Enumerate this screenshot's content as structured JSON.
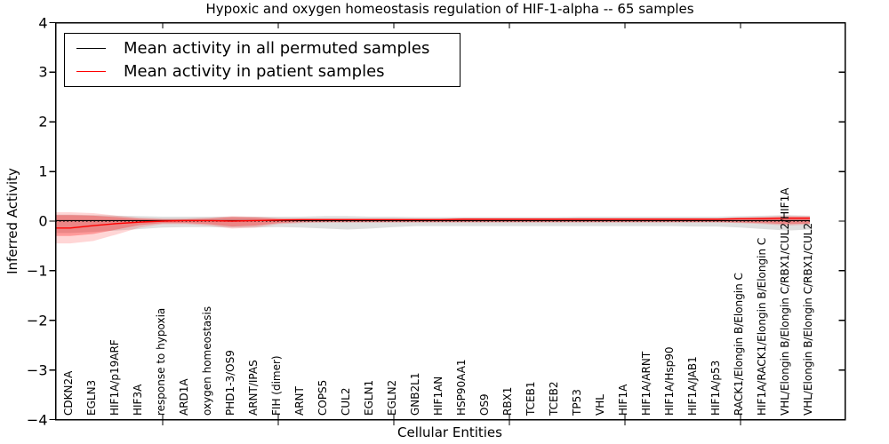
{
  "figure": {
    "title": "Hypoxic and oxygen homeostasis regulation of HIF-1-alpha -- 65 samples",
    "xlabel": "Cellular Entities",
    "ylabel": "Inferred Activity"
  },
  "legend": {
    "items": [
      {
        "label": "Mean activity in all permuted samples",
        "color": "#000000"
      },
      {
        "label": "Mean activity in patient samples",
        "color": "#ff0000"
      }
    ]
  },
  "chart_data": {
    "type": "line",
    "title": "Hypoxic and oxygen homeostasis regulation of HIF-1-alpha -- 65 samples",
    "xlabel": "Cellular Entities",
    "ylabel": "Inferred Activity",
    "ylim": [
      -4,
      4
    ],
    "yticks": [
      4,
      3,
      2,
      1,
      0,
      -1,
      -2,
      -3,
      -4
    ],
    "xticks_at": [
      5,
      10,
      15,
      20,
      25,
      30
    ],
    "grid": false,
    "legend_position": "upper left",
    "categories": [
      "CDKN2A",
      "EGLN3",
      "HIF1A/p19ARF",
      "HIF3A",
      "response to hypoxia",
      "ARD1A",
      "oxygen homeostasis",
      "PHD1-3/OS9",
      "ARNT/IPAS",
      "FIH (dimer)",
      "ARNT",
      "COPS5",
      "CUL2",
      "EGLN1",
      "EGLN2",
      "GNB2L1",
      "HIF1AN",
      "HSP90AA1",
      "OS9",
      "RBX1",
      "TCEB1",
      "TCEB2",
      "TP53",
      "VHL",
      "HIF1A",
      "HIF1A/ARNT",
      "HIF1A/Hsp90",
      "HIF1A/JAB1",
      "HIF1A/p53",
      "RACK1/Elongin B/Elongin C",
      "HIF1A/RACK1/Elongin B/Elongin C",
      "VHL/Elongin B/Elongin C/RBX1/CUL2/HIF1A",
      "VHL/Elongin B/Elongin C/RBX1/CUL2"
    ],
    "zero_line": {
      "value": 0,
      "style": "dotted",
      "color": "#000000"
    },
    "series": [
      {
        "name": "Mean activity in all permuted samples",
        "color": "#000000",
        "band_color": "rgba(0,0,0,0.13)",
        "mean": [
          0.01,
          0.01,
          0.01,
          0.01,
          0.01,
          0.01,
          0.01,
          0.01,
          0.01,
          0.01,
          0.01,
          0.01,
          0.01,
          0.01,
          0.01,
          0.01,
          0.01,
          0.01,
          0.01,
          0.01,
          0.01,
          0.01,
          0.01,
          0.01,
          0.01,
          0.01,
          0.01,
          0.01,
          0.01,
          0.01,
          0.01,
          0.01,
          0.01
        ],
        "band_upper": [
          0.13,
          0.12,
          0.11,
          0.1,
          0.09,
          0.09,
          0.09,
          0.09,
          0.09,
          0.09,
          0.09,
          0.1,
          0.1,
          0.09,
          0.09,
          0.08,
          0.08,
          0.08,
          0.08,
          0.08,
          0.08,
          0.08,
          0.09,
          0.09,
          0.09,
          0.09,
          0.09,
          0.09,
          0.09,
          0.1,
          0.11,
          0.12,
          0.11
        ],
        "band_lower": [
          -0.24,
          -0.22,
          -0.19,
          -0.16,
          -0.13,
          -0.12,
          -0.12,
          -0.13,
          -0.13,
          -0.12,
          -0.13,
          -0.15,
          -0.17,
          -0.15,
          -0.12,
          -0.1,
          -0.1,
          -0.1,
          -0.1,
          -0.1,
          -0.1,
          -0.1,
          -0.1,
          -0.1,
          -0.1,
          -0.1,
          -0.1,
          -0.11,
          -0.11,
          -0.13,
          -0.16,
          -0.19,
          -0.17
        ]
      },
      {
        "name": "Mean activity in patient samples",
        "color": "#ff0000",
        "band_color": "rgba(255,0,0,0.28)",
        "outer_band_color": "rgba(255,0,0,0.16)",
        "mean": [
          -0.14,
          -0.09,
          -0.05,
          -0.02,
          0.0,
          0.01,
          0.01,
          0.0,
          0.01,
          0.02,
          0.03,
          0.03,
          0.03,
          0.03,
          0.03,
          0.03,
          0.03,
          0.04,
          0.04,
          0.04,
          0.04,
          0.04,
          0.04,
          0.04,
          0.04,
          0.04,
          0.04,
          0.04,
          0.04,
          0.05,
          0.05,
          0.06,
          0.06
        ],
        "band_upper": [
          0.12,
          0.11,
          0.08,
          0.05,
          0.04,
          0.04,
          0.05,
          0.08,
          0.07,
          0.05,
          0.04,
          0.04,
          0.04,
          0.04,
          0.04,
          0.04,
          0.04,
          0.05,
          0.05,
          0.05,
          0.05,
          0.05,
          0.05,
          0.05,
          0.05,
          0.05,
          0.05,
          0.05,
          0.05,
          0.06,
          0.07,
          0.08,
          0.08
        ],
        "band_lower": [
          -0.3,
          -0.26,
          -0.17,
          -0.08,
          -0.04,
          -0.04,
          -0.06,
          -0.11,
          -0.09,
          -0.04,
          -0.02,
          -0.02,
          -0.02,
          -0.02,
          -0.02,
          -0.02,
          -0.02,
          -0.02,
          -0.02,
          -0.02,
          -0.02,
          -0.02,
          -0.02,
          -0.02,
          -0.02,
          -0.02,
          -0.02,
          -0.02,
          -0.02,
          -0.03,
          -0.04,
          -0.06,
          -0.05
        ],
        "outer_upper": [
          0.18,
          0.16,
          0.11,
          0.07,
          0.05,
          0.05,
          0.07,
          0.1,
          0.09,
          0.06,
          0.05,
          0.05,
          0.05,
          0.05,
          0.05,
          0.05,
          0.05,
          0.06,
          0.06,
          0.06,
          0.06,
          0.06,
          0.06,
          0.06,
          0.06,
          0.06,
          0.06,
          0.06,
          0.06,
          0.07,
          0.09,
          0.11,
          0.1
        ],
        "outer_lower": [
          -0.45,
          -0.4,
          -0.27,
          -0.13,
          -0.06,
          -0.06,
          -0.09,
          -0.15,
          -0.13,
          -0.06,
          -0.04,
          -0.03,
          -0.03,
          -0.03,
          -0.03,
          -0.03,
          -0.03,
          -0.03,
          -0.03,
          -0.03,
          -0.03,
          -0.03,
          -0.03,
          -0.03,
          -0.03,
          -0.03,
          -0.03,
          -0.03,
          -0.03,
          -0.04,
          -0.06,
          -0.09,
          -0.07
        ]
      }
    ]
  }
}
